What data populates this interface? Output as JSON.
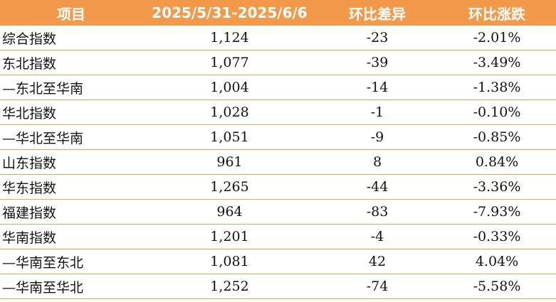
{
  "table": {
    "headers": [
      "项目",
      "2025/5/31-2025/6/6",
      "环比差异",
      "环比涨跌"
    ],
    "rows": [
      [
        "综合指数",
        "1,124",
        "-23",
        "-2.01%"
      ],
      [
        "东北指数",
        "1,077",
        "-39",
        "-3.49%"
      ],
      [
        "—东北至华南",
        "1,004",
        "-14",
        "-1.38%"
      ],
      [
        "华北指数",
        "1,028",
        "-1",
        "-0.10%"
      ],
      [
        "—华北至华南",
        "1,051",
        "-9",
        "-0.85%"
      ],
      [
        "山东指数",
        "961",
        "8",
        "0.84%"
      ],
      [
        "华东指数",
        "1,265",
        "-44",
        "-3.36%"
      ],
      [
        "福建指数",
        "964",
        "-83",
        "-7.93%"
      ],
      [
        "华南指数",
        "1,201",
        "-4",
        "-0.33%"
      ],
      [
        "—华南至东北",
        "1,081",
        "42",
        "4.04%"
      ],
      [
        "—华南至华北",
        "1,252",
        "-74",
        "-5.58%"
      ]
    ]
  },
  "colors": {
    "header_bg": "#f29a4a",
    "header_text": "#ffffff",
    "rule": "#e9a25c"
  }
}
